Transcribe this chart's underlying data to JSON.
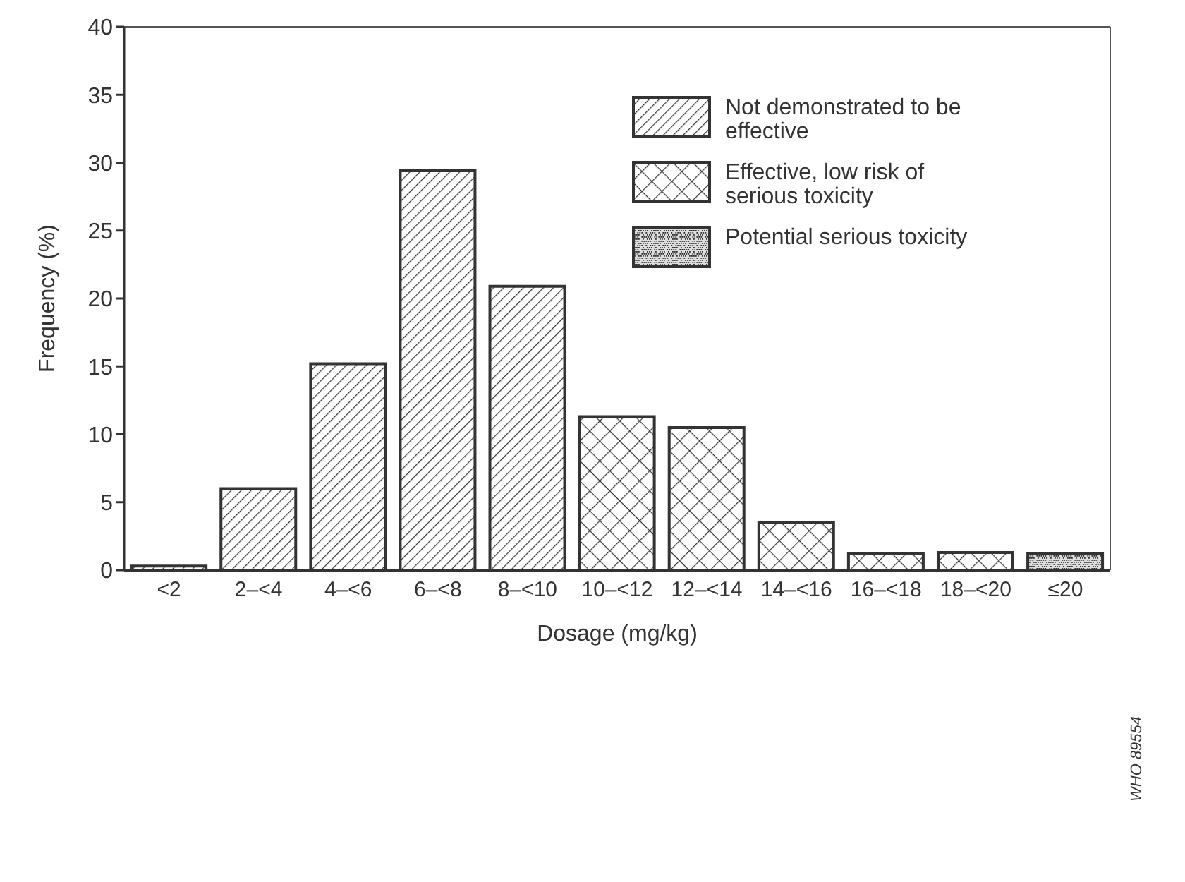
{
  "chart_data": {
    "type": "bar",
    "xlabel": "Dosage (mg/kg)",
    "ylabel": "Frequency (%)",
    "categories": [
      "<2",
      "2–<4",
      "4–<6",
      "6–<8",
      "8–<10",
      "10–<12",
      "12–<14",
      "14–<16",
      "16–<18",
      "18–<20",
      "≤20"
    ],
    "series": [
      {
        "name": "Not demonstrated to be effective",
        "color": "#333333",
        "values": [
          0.3,
          6.0,
          15.2,
          29.4,
          20.9,
          null,
          null,
          null,
          null,
          null,
          null
        ]
      },
      {
        "name": "Effective, low risk of serious toxicity",
        "color": "#333333",
        "values": [
          null,
          null,
          null,
          null,
          null,
          11.3,
          10.5,
          3.5,
          1.2,
          1.3,
          null
        ]
      },
      {
        "name": "Potential serious toxicity",
        "color": "#333333",
        "values": [
          null,
          null,
          null,
          null,
          null,
          null,
          null,
          null,
          null,
          null,
          1.2
        ]
      }
    ],
    "stacked": true,
    "ylim": [
      0,
      40
    ],
    "yticks": [
      0,
      5,
      10,
      15,
      20,
      25,
      30,
      35,
      40
    ],
    "legend": "top right",
    "annotations": [
      "WHO 89554"
    ]
  }
}
